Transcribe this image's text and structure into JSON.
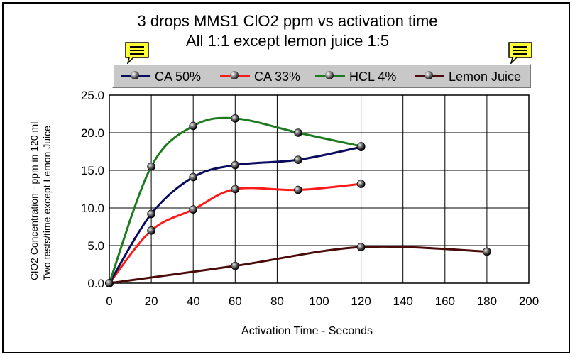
{
  "chart_data": {
    "type": "line",
    "title": "3 drops MMS1 ClO2 ppm vs activation time",
    "subtitle": "All 1:1 except lemon juice 1:5",
    "xlabel": "Activation Time - Seconds",
    "ylabel_line1": "ClO2 Concentration - ppm in 120 ml",
    "ylabel_line2": "Two tests/time except Lemon Juice",
    "xlim": [
      0,
      200
    ],
    "ylim": [
      0,
      25
    ],
    "x_ticks": [
      "0",
      "20",
      "40",
      "60",
      "80",
      "100",
      "120",
      "140",
      "160",
      "180",
      "200"
    ],
    "y_ticks": [
      "0.0",
      "5.0",
      "10.0",
      "15.0",
      "20.0",
      "25.0"
    ],
    "grid": true,
    "legend_position": "top",
    "series": [
      {
        "name": "CA 50%",
        "color": "#0a0a5e",
        "points": [
          [
            0,
            0
          ],
          [
            20,
            9.2
          ],
          [
            40,
            14.1
          ],
          [
            60,
            15.7
          ],
          [
            90,
            16.4
          ],
          [
            120,
            18.1
          ]
        ]
      },
      {
        "name": "CA 33%",
        "color": "#ff1a1a",
        "points": [
          [
            0,
            0
          ],
          [
            20,
            7.0
          ],
          [
            40,
            9.8
          ],
          [
            60,
            12.5
          ],
          [
            90,
            12.4
          ],
          [
            120,
            13.2
          ]
        ]
      },
      {
        "name": "HCL 4%",
        "color": "#1e7a1e",
        "points": [
          [
            0,
            0
          ],
          [
            20,
            15.5
          ],
          [
            40,
            20.9
          ],
          [
            60,
            21.9
          ],
          [
            90,
            20.0
          ],
          [
            120,
            18.2
          ]
        ]
      },
      {
        "name": "Lemon Juice",
        "color": "#4a0a0a",
        "points": [
          [
            0,
            0
          ],
          [
            60,
            2.3
          ],
          [
            120,
            4.8
          ],
          [
            180,
            4.2
          ]
        ]
      }
    ]
  },
  "icons": {
    "note_left": "note-icon",
    "note_right": "note-icon"
  }
}
